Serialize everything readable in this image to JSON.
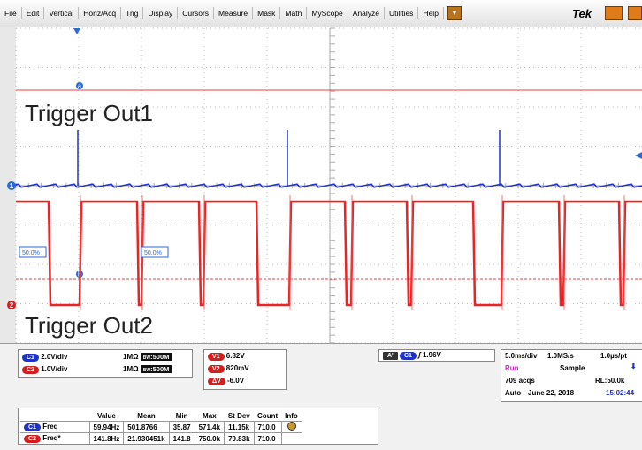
{
  "menu": [
    "File",
    "Edit",
    "Vertical",
    "Horiz/Acq",
    "Trig",
    "Display",
    "Cursors",
    "Measure",
    "Mask",
    "Math",
    "MyScope",
    "Analyze",
    "Utilities",
    "Help"
  ],
  "brand": "Tek",
  "display": {
    "labels": [
      "Trigger Out1",
      "Trigger Out2"
    ],
    "cursor_markers": [
      "a",
      "b"
    ],
    "channel_markers": [
      "1",
      "2"
    ],
    "level_labels": [
      "50.0%",
      "50.0%"
    ]
  },
  "channels": [
    {
      "id": "C1",
      "scale": "2.0V/div",
      "impedance": "1MΩ",
      "bw_label": "BW",
      "bandwidth": "500M"
    },
    {
      "id": "C2",
      "scale": "1.0V/div",
      "impedance": "1MΩ",
      "bw_label": "BW",
      "bandwidth": "500M"
    }
  ],
  "cursors": [
    {
      "id": "V1",
      "value": "6.82V"
    },
    {
      "id": "V2",
      "value": "820mV"
    },
    {
      "id": "ΔV",
      "value": "-6.0V"
    }
  ],
  "trigger": {
    "mode": "A'",
    "source": "C1",
    "level": "1.96V"
  },
  "acquisition": {
    "timebase": "5.0ms/div",
    "sample_rate": "1.0MS/s",
    "resolution": "1.0µs/pt",
    "state": "Run",
    "mode": "Sample",
    "acqs": "709 acqs",
    "record_length": "RL:50.0k",
    "trigger_mode": "Auto",
    "date": "June 22, 2018",
    "time": "15:02:44"
  },
  "measurements": {
    "headers": [
      "Value",
      "Mean",
      "Min",
      "Max",
      "St Dev",
      "Count",
      "Info"
    ],
    "rows": [
      {
        "source": "C1",
        "name": "Freq",
        "cells": [
          "59.94Hz",
          "501.8766",
          "35.87",
          "571.4k",
          "11.15k",
          "710.0"
        ]
      },
      {
        "source": "C2",
        "name": "Freq*",
        "cells": [
          "141.8Hz",
          "21.930451k",
          "141.8",
          "750.0k",
          "79.83k",
          "710.0"
        ]
      }
    ]
  }
}
